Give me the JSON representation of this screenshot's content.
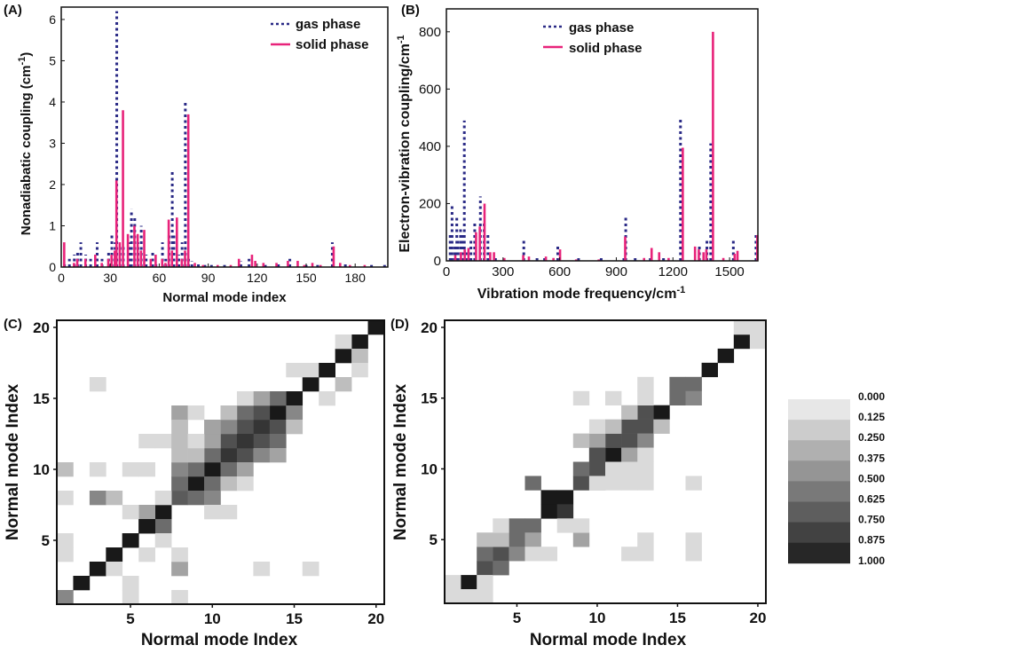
{
  "panels": {
    "A": {
      "label": "(A)",
      "xlabel": "Normal mode index",
      "ylabel": "Nonadiabatic coupling (cm",
      "ylabel_sup": "-1",
      "ylabel_close": ")"
    },
    "B": {
      "label": "(B)",
      "xlabel": "Vibration mode frequency/cm",
      "xlabel_sup": "-1",
      "ylabel": "Electron-vibration coupling/cm",
      "ylabel_sup": "-1"
    },
    "C": {
      "label": "(C)",
      "xlabel": "Normal mode Index",
      "ylabel": "Normal mode Index"
    },
    "D": {
      "label": "(D)",
      "xlabel": "Normal mode Index",
      "ylabel": "Normal mode Index"
    }
  },
  "legend": {
    "gas": "gas phase",
    "solid": "solid phase"
  },
  "colors": {
    "gas": "#2a2a86",
    "solid": "#e8237a",
    "frame": "#111111"
  },
  "chart_data": [
    {
      "id": "A",
      "type": "bar",
      "xlabel": "Normal mode index",
      "ylabel": "Nonadiabatic coupling (cm-1)",
      "xlim": [
        0,
        200
      ],
      "ylim": [
        0,
        6.3
      ],
      "xticks": [
        0,
        30,
        60,
        90,
        120,
        150,
        180
      ],
      "yticks": [
        0,
        1,
        2,
        3,
        4,
        5,
        6
      ],
      "series": [
        {
          "name": "gas phase",
          "style": "dashed",
          "x": [
            2,
            5,
            8,
            10,
            12,
            15,
            18,
            22,
            25,
            29,
            31,
            33,
            34,
            36,
            38,
            42,
            43,
            45,
            47,
            49,
            52,
            56,
            58,
            62,
            64,
            66,
            68,
            69,
            72,
            74,
            76,
            78,
            80,
            84,
            88,
            92,
            100,
            110,
            115,
            125,
            133,
            140,
            150,
            157,
            166,
            174,
            190,
            198
          ],
          "y": [
            0.1,
            0.2,
            0.3,
            0.4,
            0.6,
            0.3,
            0.2,
            0.6,
            0.2,
            0.4,
            0.8,
            0.6,
            6.2,
            0.5,
            0.5,
            0.6,
            1.4,
            1.2,
            0.6,
            1.0,
            0.3,
            0.4,
            0.1,
            0.6,
            0.2,
            0.8,
            2.3,
            0.8,
            0.3,
            0.6,
            4.0,
            0.2,
            0.15,
            0.1,
            0.05,
            0.05,
            0.05,
            0.15,
            0.2,
            0.05,
            0.1,
            0.2,
            0.05,
            0.05,
            0.6,
            0.1,
            0.05,
            0.05
          ]
        },
        {
          "name": "solid phase",
          "style": "solid",
          "x": [
            1,
            7,
            9,
            14,
            20,
            24,
            28,
            30,
            32,
            33,
            35,
            37,
            40,
            44,
            46,
            48,
            50,
            54,
            57,
            61,
            63,
            65,
            67,
            70,
            73,
            75,
            77,
            81,
            86,
            95,
            103,
            108,
            116,
            118,
            123,
            131,
            138,
            144,
            148,
            153,
            158,
            166,
            170,
            176,
            185
          ],
          "y": [
            0.6,
            0.1,
            0.2,
            0.2,
            0.3,
            0.1,
            0.2,
            0.3,
            0.4,
            2.1,
            0.6,
            3.8,
            0.8,
            1.0,
            0.8,
            0.4,
            0.9,
            0.2,
            0.3,
            0.2,
            0.1,
            1.15,
            0.4,
            1.2,
            0.2,
            0.4,
            3.7,
            0.1,
            0.05,
            0.05,
            0.05,
            0.2,
            0.3,
            0.15,
            0.1,
            0.1,
            0.15,
            0.15,
            0.05,
            0.1,
            0.05,
            0.5,
            0.1,
            0.05,
            0.05
          ]
        }
      ]
    },
    {
      "id": "B",
      "type": "bar",
      "xlabel": "Vibration mode frequency/cm-1",
      "ylabel": "Electron-vibration coupling/cm-1",
      "xlim": [
        0,
        1650
      ],
      "ylim": [
        0,
        880
      ],
      "xticks": [
        0,
        300,
        600,
        900,
        1200,
        1500
      ],
      "yticks": [
        0,
        200,
        400,
        600,
        800
      ],
      "series": [
        {
          "name": "gas phase",
          "style": "dashed",
          "x": [
            20,
            30,
            45,
            55,
            60,
            75,
            85,
            95,
            105,
            120,
            130,
            150,
            180,
            200,
            220,
            260,
            410,
            480,
            520,
            590,
            700,
            820,
            940,
            950,
            1000,
            1080,
            1150,
            1240,
            1340,
            1380,
            1400,
            1520,
            1640
          ],
          "y": [
            90,
            200,
            60,
            150,
            80,
            120,
            100,
            490,
            30,
            20,
            80,
            130,
            225,
            140,
            100,
            20,
            70,
            20,
            20,
            55,
            10,
            15,
            20,
            160,
            10,
            20,
            10,
            500,
            60,
            75,
            410,
            80,
            100
          ]
        },
        {
          "name": "solid phase",
          "style": "solid",
          "x": [
            40,
            70,
            90,
            110,
            150,
            170,
            195,
            225,
            245,
            300,
            400,
            430,
            520,
            560,
            595,
            680,
            800,
            940,
            1040,
            1080,
            1120,
            1170,
            1245,
            1310,
            1330,
            1355,
            1370,
            1405,
            1460,
            1520,
            1535,
            1640
          ],
          "y": [
            20,
            30,
            40,
            45,
            100,
            120,
            200,
            30,
            30,
            10,
            20,
            15,
            15,
            10,
            40,
            5,
            5,
            85,
            10,
            45,
            30,
            10,
            395,
            50,
            40,
            30,
            40,
            800,
            10,
            25,
            35,
            90
          ]
        }
      ]
    },
    {
      "id": "C",
      "type": "heatmap",
      "n": 20,
      "xlabel": "Normal mode Index",
      "ylabel": "Normal mode Index",
      "xticks": [
        5,
        10,
        15,
        20
      ],
      "yticks": [
        5,
        10,
        15,
        20
      ],
      "cells": [
        [
          1,
          1,
          0.5
        ],
        [
          2,
          2,
          1.0
        ],
        [
          3,
          3,
          1.0
        ],
        [
          4,
          4,
          1.0
        ],
        [
          5,
          5,
          1.0
        ],
        [
          6,
          6,
          1.0
        ],
        [
          7,
          7,
          1.0
        ],
        [
          8,
          8,
          0.7
        ],
        [
          9,
          9,
          1.0
        ],
        [
          10,
          10,
          1.0
        ],
        [
          11,
          11,
          0.875
        ],
        [
          12,
          12,
          0.875
        ],
        [
          13,
          13,
          0.875
        ],
        [
          14,
          14,
          1.0
        ],
        [
          15,
          15,
          1.0
        ],
        [
          16,
          16,
          1.0
        ],
        [
          17,
          17,
          1.0
        ],
        [
          18,
          18,
          1.0
        ],
        [
          19,
          19,
          1.0
        ],
        [
          20,
          20,
          1.0
        ],
        [
          6,
          7,
          0.375
        ],
        [
          7,
          6,
          0.625
        ],
        [
          7,
          8,
          0.125
        ],
        [
          3,
          8,
          0.5
        ],
        [
          4,
          8,
          0.25
        ],
        [
          5,
          7,
          0.125
        ],
        [
          8,
          9,
          0.625
        ],
        [
          9,
          8,
          0.625
        ],
        [
          9,
          10,
          0.625
        ],
        [
          10,
          9,
          0.625
        ],
        [
          8,
          10,
          0.5
        ],
        [
          10,
          8,
          0.5
        ],
        [
          10,
          11,
          0.625
        ],
        [
          11,
          10,
          0.625
        ],
        [
          11,
          12,
          0.75
        ],
        [
          12,
          11,
          0.75
        ],
        [
          12,
          13,
          0.75
        ],
        [
          13,
          12,
          0.75
        ],
        [
          13,
          14,
          0.75
        ],
        [
          14,
          13,
          0.75
        ],
        [
          11,
          13,
          0.5
        ],
        [
          12,
          14,
          0.625
        ],
        [
          13,
          11,
          0.5
        ],
        [
          14,
          12,
          0.625
        ],
        [
          9,
          11,
          0.25
        ],
        [
          10,
          12,
          0.375
        ],
        [
          11,
          9,
          0.25
        ],
        [
          12,
          10,
          0.375
        ],
        [
          12,
          12,
          0.875
        ],
        [
          14,
          15,
          0.625
        ],
        [
          15,
          14,
          0.5
        ],
        [
          13,
          15,
          0.375
        ],
        [
          15,
          13,
          0.25
        ],
        [
          14,
          11,
          0.375
        ],
        [
          8,
          14,
          0.375
        ],
        [
          9,
          14,
          0.125
        ],
        [
          8,
          13,
          0.25
        ],
        [
          6,
          12,
          0.125
        ],
        [
          7,
          12,
          0.125
        ],
        [
          8,
          12,
          0.25
        ],
        [
          8,
          11,
          0.25
        ],
        [
          9,
          12,
          0.125
        ],
        [
          5,
          10,
          0.125
        ],
        [
          6,
          10,
          0.125
        ],
        [
          1,
          10,
          0.25
        ],
        [
          3,
          10,
          0.125
        ],
        [
          1,
          8,
          0.125
        ],
        [
          3,
          16,
          0.125
        ],
        [
          10,
          7,
          0.125
        ],
        [
          11,
          7,
          0.125
        ],
        [
          12,
          9,
          0.125
        ],
        [
          8,
          3,
          0.375
        ],
        [
          8,
          4,
          0.125
        ],
        [
          8,
          1,
          0.125
        ],
        [
          3,
          3,
          1.0
        ],
        [
          1,
          5,
          0.125
        ],
        [
          1,
          4,
          0.125
        ],
        [
          5,
          5,
          1.0
        ],
        [
          5,
          2,
          0.125
        ],
        [
          5,
          1,
          0.125
        ],
        [
          7,
          5,
          0.125
        ],
        [
          6,
          6,
          1.0
        ],
        [
          6,
          4,
          0.125
        ],
        [
          4,
          3,
          0.125
        ],
        [
          13,
          3,
          0.125
        ],
        [
          16,
          3,
          0.125
        ],
        [
          15,
          17,
          0.125
        ],
        [
          16,
          17,
          0.125
        ],
        [
          17,
          15,
          0.125
        ],
        [
          18,
          16,
          0.25
        ],
        [
          18,
          19,
          0.125
        ],
        [
          19,
          18,
          0.25
        ],
        [
          19,
          17,
          0.125
        ],
        [
          17,
          17,
          1.0
        ],
        [
          12,
          15,
          0.125
        ],
        [
          10,
          13,
          0.375
        ],
        [
          11,
          14,
          0.25
        ]
      ]
    },
    {
      "id": "D",
      "type": "heatmap",
      "n": 20,
      "xlabel": "Normal mode Index",
      "ylabel": "Normal mode Index",
      "xticks": [
        5,
        10,
        15,
        20
      ],
      "yticks": [
        5,
        10,
        15,
        20
      ],
      "cells": [
        [
          1,
          1,
          0.125
        ],
        [
          2,
          2,
          1.0
        ],
        [
          3,
          3,
          0.75
        ],
        [
          4,
          4,
          0.75
        ],
        [
          5,
          5,
          0.625
        ],
        [
          6,
          6,
          0.625
        ],
        [
          7,
          7,
          1.0
        ],
        [
          8,
          8,
          1.0
        ],
        [
          9,
          9,
          0.75
        ],
        [
          10,
          10,
          0.75
        ],
        [
          11,
          11,
          1.0
        ],
        [
          12,
          12,
          0.75
        ],
        [
          13,
          13,
          0.75
        ],
        [
          14,
          14,
          1.0
        ],
        [
          15,
          15,
          0.625
        ],
        [
          16,
          16,
          0.625
        ],
        [
          17,
          17,
          1.0
        ],
        [
          18,
          18,
          1.0
        ],
        [
          19,
          19,
          1.0
        ],
        [
          20,
          20,
          0.125
        ],
        [
          3,
          2,
          0.125
        ],
        [
          3,
          1,
          0.125
        ],
        [
          4,
          3,
          0.625
        ],
        [
          3,
          4,
          0.625
        ],
        [
          5,
          4,
          0.5
        ],
        [
          4,
          5,
          0.25
        ],
        [
          5,
          6,
          0.625
        ],
        [
          6,
          5,
          0.375
        ],
        [
          4,
          6,
          0.125
        ],
        [
          3,
          5,
          0.25
        ],
        [
          7,
          8,
          1.0
        ],
        [
          8,
          7,
          0.875
        ],
        [
          6,
          9,
          0.625
        ],
        [
          8,
          6,
          0.125
        ],
        [
          9,
          10,
          0.625
        ],
        [
          10,
          9,
          0.375
        ],
        [
          10,
          11,
          0.75
        ],
        [
          11,
          10,
          0.125
        ],
        [
          11,
          12,
          0.75
        ],
        [
          12,
          11,
          0.375
        ],
        [
          12,
          13,
          0.75
        ],
        [
          13,
          12,
          0.5
        ],
        [
          13,
          14,
          0.75
        ],
        [
          14,
          13,
          0.25
        ],
        [
          15,
          16,
          0.625
        ],
        [
          16,
          15,
          0.5
        ],
        [
          9,
          5,
          0.375
        ],
        [
          9,
          6,
          0.125
        ],
        [
          10,
          12,
          0.375
        ],
        [
          9,
          12,
          0.25
        ],
        [
          10,
          13,
          0.125
        ],
        [
          11,
          13,
          0.25
        ],
        [
          12,
          14,
          0.25
        ],
        [
          13,
          15,
          0.125
        ],
        [
          9,
          15,
          0.125
        ],
        [
          11,
          15,
          0.125
        ],
        [
          10,
          11,
          0.75
        ],
        [
          10,
          9,
          0.125
        ],
        [
          11,
          9,
          0.125
        ],
        [
          12,
          9,
          0.125
        ],
        [
          13,
          9,
          0.125
        ],
        [
          12,
          10,
          0.125
        ],
        [
          13,
          10,
          0.125
        ],
        [
          6,
          4,
          0.125
        ],
        [
          7,
          4,
          0.125
        ],
        [
          12,
          4,
          0.125
        ],
        [
          13,
          4,
          0.125
        ],
        [
          13,
          5,
          0.125
        ],
        [
          16,
          4,
          0.125
        ],
        [
          16,
          5,
          0.125
        ],
        [
          16,
          9,
          0.125
        ],
        [
          13,
          11,
          0.125
        ],
        [
          13,
          16,
          0.125
        ],
        [
          19,
          20,
          0.125
        ],
        [
          20,
          19,
          0.125
        ],
        [
          2,
          1,
          0.125
        ],
        [
          1,
          2,
          0.125
        ]
      ]
    }
  ],
  "colorbar": {
    "labels": [
      "0.000",
      "0.125",
      "0.250",
      "0.375",
      "0.500",
      "0.625",
      "0.750",
      "0.875",
      "1.000"
    ],
    "values": [
      0.0,
      0.125,
      0.25,
      0.375,
      0.5,
      0.625,
      0.75,
      0.875,
      1.0
    ]
  }
}
